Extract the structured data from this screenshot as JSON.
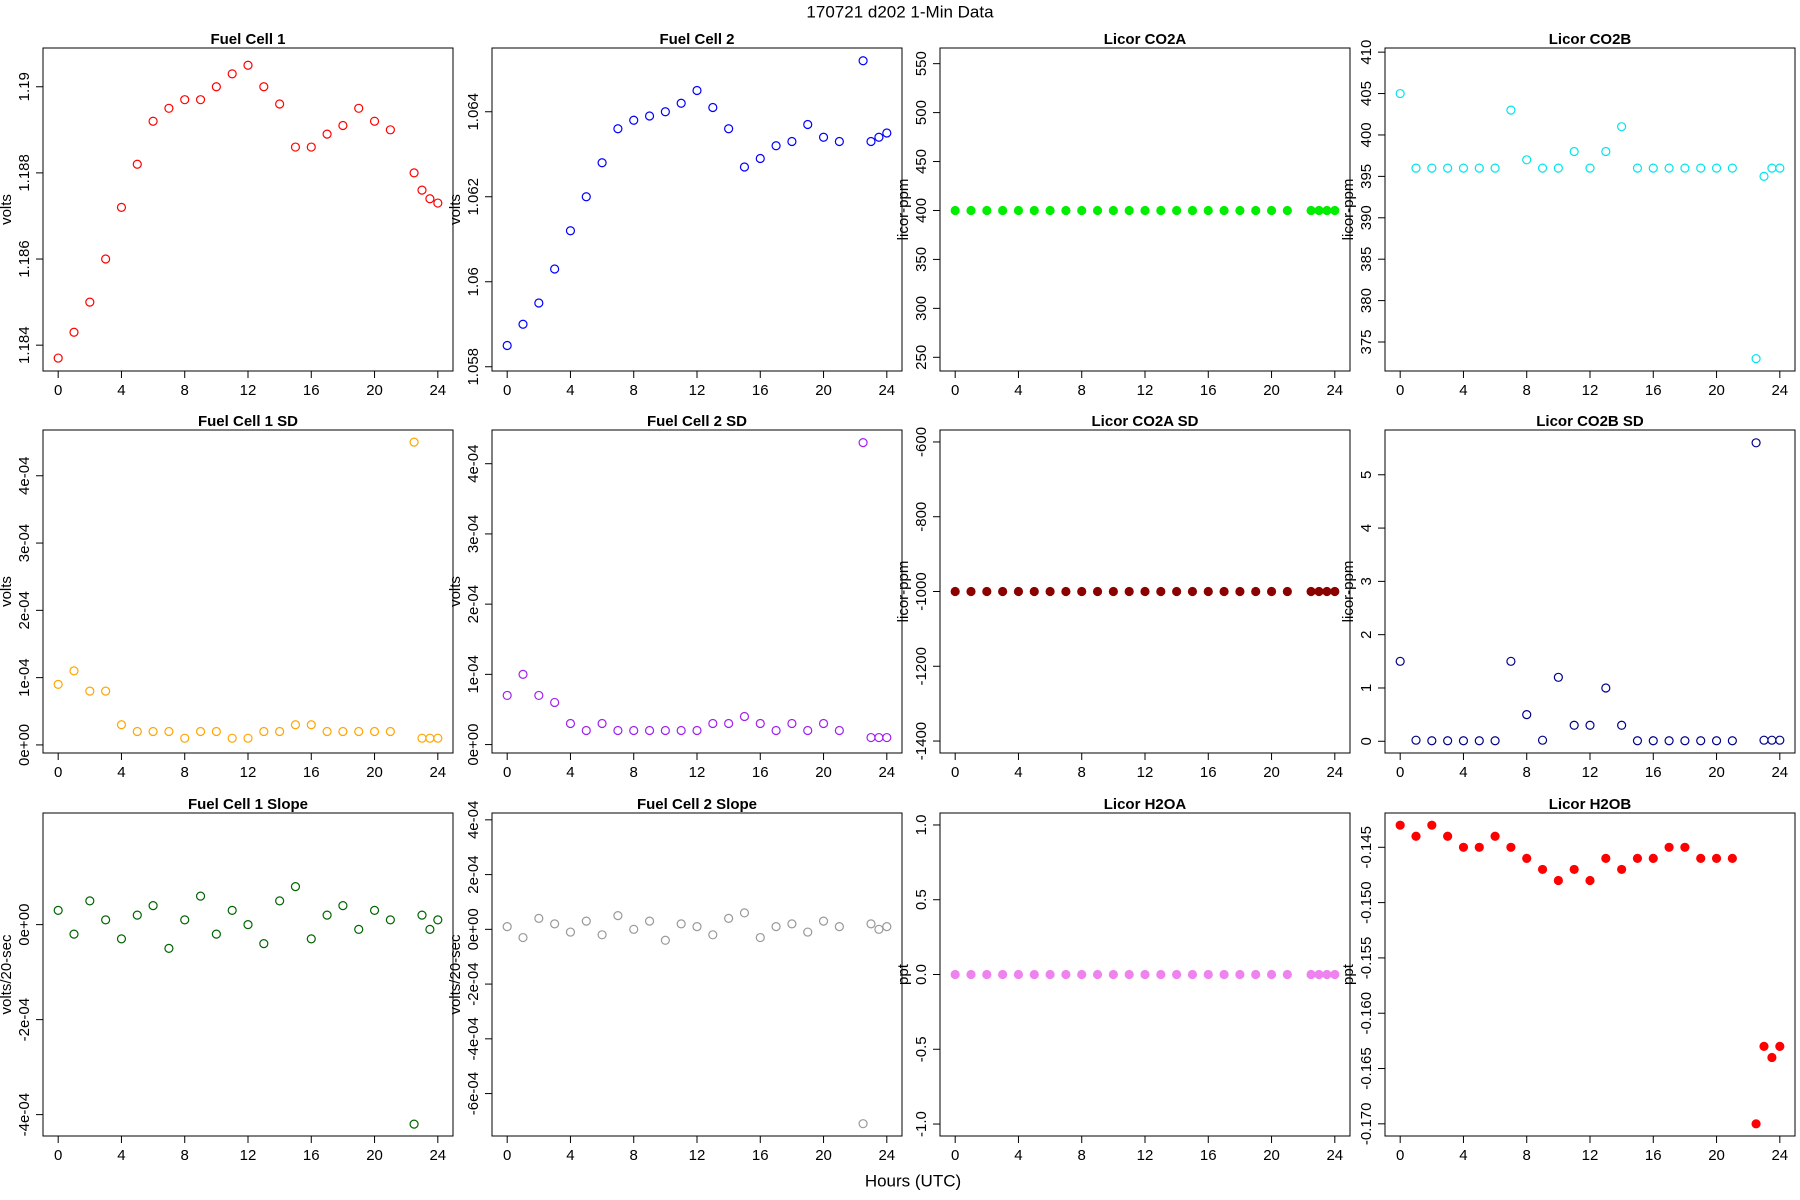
{
  "title": "170721    d202    1-Min Data",
  "xlabel": "Hours (UTC)",
  "chart_data": [
    {
      "type": "scatter",
      "title": "Fuel Cell 1",
      "ylabel": "volts",
      "color": "#ff0000",
      "filled": false,
      "x": [
        0,
        1,
        2,
        3,
        4,
        5,
        6,
        7,
        8,
        9,
        10,
        11,
        12,
        13,
        14,
        15,
        16,
        17,
        18,
        19,
        20,
        21,
        22.5,
        23,
        23.5,
        24
      ],
      "values": [
        1.1837,
        1.1843,
        1.185,
        1.186,
        1.1872,
        1.1882,
        1.1892,
        1.1895,
        1.1897,
        1.1897,
        1.19,
        1.1903,
        1.1905,
        1.19,
        1.1896,
        1.1886,
        1.1886,
        1.1889,
        1.1891,
        1.1895,
        1.1892,
        1.189,
        1.188,
        1.1876,
        1.1874,
        1.1873
      ],
      "xlim": [
        -0.96,
        24.96
      ],
      "xticks": [
        0,
        4,
        8,
        12,
        16,
        20,
        24
      ],
      "ylim": [
        1.1834,
        1.1909
      ],
      "yticks": [
        1.184,
        1.186,
        1.188,
        1.19
      ]
    },
    {
      "type": "scatter",
      "title": "Fuel Cell 2",
      "ylabel": "volts",
      "color": "#0000ff",
      "filled": false,
      "x": [
        0,
        1,
        2,
        3,
        4,
        5,
        6,
        7,
        8,
        9,
        10,
        11,
        12,
        13,
        14,
        15,
        16,
        17,
        18,
        19,
        20,
        21,
        22.5,
        23,
        23.5,
        24
      ],
      "values": [
        1.0585,
        1.059,
        1.0595,
        1.0603,
        1.0612,
        1.062,
        1.0628,
        1.0636,
        1.0638,
        1.0639,
        1.064,
        1.0642,
        1.0645,
        1.0641,
        1.0636,
        1.0627,
        1.0629,
        1.0632,
        1.0633,
        1.0637,
        1.0634,
        1.0633,
        1.0652,
        1.0633,
        1.0634,
        1.0635
      ],
      "xlim": [
        -0.96,
        24.96
      ],
      "xticks": [
        0,
        4,
        8,
        12,
        16,
        20,
        24
      ],
      "ylim": [
        1.0579,
        1.0655
      ],
      "yticks": [
        1.058,
        1.06,
        1.062,
        1.064
      ]
    },
    {
      "type": "scatter",
      "title": "Licor CO2A",
      "ylabel": "licor-ppm",
      "color": "#00ee00",
      "filled": true,
      "x": [
        0,
        1,
        2,
        3,
        4,
        5,
        6,
        7,
        8,
        9,
        10,
        11,
        12,
        13,
        14,
        15,
        16,
        17,
        18,
        19,
        20,
        21,
        22.5,
        23,
        23.5,
        24
      ],
      "values": [
        400,
        400,
        400,
        400,
        400,
        400,
        400,
        400,
        400,
        400,
        400,
        400,
        400,
        400,
        400,
        400,
        400,
        400,
        400,
        400,
        400,
        400,
        400,
        400,
        400,
        400
      ],
      "xlim": [
        -0.96,
        24.96
      ],
      "xticks": [
        0,
        4,
        8,
        12,
        16,
        20,
        24
      ],
      "ylim": [
        236,
        566
      ],
      "yticks": [
        250,
        300,
        350,
        400,
        450,
        500,
        550
      ]
    },
    {
      "type": "scatter",
      "title": "Licor CO2B",
      "ylabel": "licor-ppm",
      "color": "#00e5ee",
      "filled": false,
      "x": [
        0,
        1,
        2,
        3,
        4,
        5,
        6,
        7,
        8,
        9,
        10,
        11,
        12,
        13,
        14,
        15,
        16,
        17,
        18,
        19,
        20,
        21,
        22.5,
        23,
        23.5,
        24
      ],
      "values": [
        405,
        396,
        396,
        396,
        396,
        396,
        396,
        403,
        397,
        396,
        396,
        398,
        396,
        398,
        401,
        396,
        396,
        396,
        396,
        396,
        396,
        396,
        373,
        395,
        396,
        396
      ],
      "xlim": [
        -0.96,
        24.96
      ],
      "xticks": [
        0,
        4,
        8,
        12,
        16,
        20,
        24
      ],
      "ylim": [
        371.5,
        410.5
      ],
      "yticks": [
        375,
        380,
        385,
        390,
        395,
        400,
        405,
        410
      ]
    },
    {
      "type": "scatter",
      "title": "Fuel Cell 1 SD",
      "ylabel": "volts",
      "color": "#ffa500",
      "filled": false,
      "x": [
        0,
        1,
        2,
        3,
        4,
        5,
        6,
        7,
        8,
        9,
        10,
        11,
        12,
        13,
        14,
        15,
        16,
        17,
        18,
        19,
        20,
        21,
        22.5,
        23,
        23.5,
        24
      ],
      "values": [
        9e-05,
        0.00011,
        8e-05,
        8e-05,
        3e-05,
        2e-05,
        2e-05,
        2e-05,
        1e-05,
        2e-05,
        2e-05,
        1e-05,
        1e-05,
        2e-05,
        2e-05,
        3e-05,
        3e-05,
        2e-05,
        2e-05,
        2e-05,
        2e-05,
        2e-05,
        0.00045,
        1e-05,
        1e-05,
        1e-05
      ],
      "xlim": [
        -0.96,
        24.96
      ],
      "xticks": [
        0,
        4,
        8,
        12,
        16,
        20,
        24
      ],
      "ylim": [
        -1.2e-05,
        0.000468
      ],
      "yticks": [
        {
          "value": 0,
          "label": "0e+00"
        },
        {
          "value": 0.0001,
          "label": "1e-04"
        },
        {
          "value": 0.0002,
          "label": "2e-04"
        },
        {
          "value": 0.0003,
          "label": "3e-04"
        },
        {
          "value": 0.0004,
          "label": "4e-04"
        }
      ]
    },
    {
      "type": "scatter",
      "title": "Fuel Cell 2 SD",
      "ylabel": "volts",
      "color": "#a020f0",
      "filled": false,
      "x": [
        0,
        1,
        2,
        3,
        4,
        5,
        6,
        7,
        8,
        9,
        10,
        11,
        12,
        13,
        14,
        15,
        16,
        17,
        18,
        19,
        20,
        21,
        22.5,
        23,
        23.5,
        24
      ],
      "values": [
        7e-05,
        0.0001,
        7e-05,
        6e-05,
        3e-05,
        2e-05,
        3e-05,
        2e-05,
        2e-05,
        2e-05,
        2e-05,
        2e-05,
        2e-05,
        3e-05,
        3e-05,
        4e-05,
        3e-05,
        2e-05,
        3e-05,
        2e-05,
        3e-05,
        2e-05,
        0.00043,
        1e-05,
        1e-05,
        1e-05
      ],
      "xlim": [
        -0.96,
        24.96
      ],
      "xticks": [
        0,
        4,
        8,
        12,
        16,
        20,
        24
      ],
      "ylim": [
        -1.2e-05,
        0.000448
      ],
      "yticks": [
        {
          "value": 0,
          "label": "0e+00"
        },
        {
          "value": 0.0001,
          "label": "1e-04"
        },
        {
          "value": 0.0002,
          "label": "2e-04"
        },
        {
          "value": 0.0003,
          "label": "3e-04"
        },
        {
          "value": 0.0004,
          "label": "4e-04"
        }
      ]
    },
    {
      "type": "scatter",
      "title": "Licor CO2A SD",
      "ylabel": "licor-ppm",
      "color": "#8b0000",
      "filled": true,
      "x": [
        0,
        1,
        2,
        3,
        4,
        5,
        6,
        7,
        8,
        9,
        10,
        11,
        12,
        13,
        14,
        15,
        16,
        17,
        18,
        19,
        20,
        21,
        22.5,
        23,
        23.5,
        24
      ],
      "values": [
        -1000,
        -1000,
        -1000,
        -1000,
        -1000,
        -1000,
        -1000,
        -1000,
        -1000,
        -1000,
        -1000,
        -1000,
        -1000,
        -1000,
        -1000,
        -1000,
        -1000,
        -1000,
        -1000,
        -1000,
        -1000,
        -1000,
        -1000,
        -1000,
        -1000,
        -1000
      ],
      "xlim": [
        -0.96,
        24.96
      ],
      "xticks": [
        0,
        4,
        8,
        12,
        16,
        20,
        24
      ],
      "ylim": [
        -1432,
        -568
      ],
      "yticks": [
        -1400,
        -1200,
        -1000,
        -800,
        -600
      ]
    },
    {
      "type": "scatter",
      "title": "Licor CO2B SD",
      "ylabel": "licor-ppm",
      "color": "#00008b",
      "filled": false,
      "x": [
        0,
        1,
        2,
        3,
        4,
        5,
        6,
        7,
        8,
        9,
        10,
        11,
        12,
        13,
        14,
        15,
        16,
        17,
        18,
        19,
        20,
        21,
        22.5,
        23,
        23.5,
        24
      ],
      "values": [
        1.5,
        0.02,
        0.01,
        0.01,
        0.01,
        0.01,
        0.01,
        1.5,
        0.5,
        0.02,
        1.2,
        0.3,
        0.3,
        1.0,
        0.3,
        0.01,
        0.01,
        0.01,
        0.01,
        0.01,
        0.01,
        0.01,
        5.6,
        0.02,
        0.02,
        0.02
      ],
      "xlim": [
        -0.96,
        24.96
      ],
      "xticks": [
        0,
        4,
        8,
        12,
        16,
        20,
        24
      ],
      "ylim": [
        -0.22,
        5.84
      ],
      "yticks": [
        0,
        1,
        2,
        3,
        4,
        5
      ]
    },
    {
      "type": "scatter",
      "title": "Fuel Cell 1 Slope",
      "ylabel": "volts/20-sec",
      "color": "#006400",
      "filled": false,
      "x": [
        0,
        1,
        2,
        3,
        4,
        5,
        6,
        7,
        8,
        9,
        10,
        11,
        12,
        13,
        14,
        15,
        16,
        17,
        18,
        19,
        20,
        21,
        22.5,
        23,
        23.5,
        24
      ],
      "values": [
        3e-05,
        -2e-05,
        5e-05,
        1e-05,
        -3e-05,
        2e-05,
        4e-05,
        -5e-05,
        1e-05,
        6e-05,
        -2e-05,
        3e-05,
        0,
        -4e-05,
        5e-05,
        8e-05,
        -3e-05,
        2e-05,
        4e-05,
        -1e-05,
        3e-05,
        1e-05,
        -0.00042,
        2e-05,
        -1e-05,
        1e-05
      ],
      "xlim": [
        -0.96,
        24.96
      ],
      "xticks": [
        0,
        4,
        8,
        12,
        16,
        20,
        24
      ],
      "ylim": [
        -0.000445,
        0.000235
      ],
      "yticks": [
        {
          "value": -0.0004,
          "label": "-4e-04"
        },
        {
          "value": -0.0002,
          "label": "-2e-04"
        },
        {
          "value": 0,
          "label": "0e+00"
        }
      ]
    },
    {
      "type": "scatter",
      "title": "Fuel Cell 2 Slope",
      "ylabel": "volts/20-sec",
      "color": "#999999",
      "filled": false,
      "x": [
        0,
        1,
        2,
        3,
        4,
        5,
        6,
        7,
        8,
        9,
        10,
        11,
        12,
        13,
        14,
        15,
        16,
        17,
        18,
        19,
        20,
        21,
        22.5,
        23,
        23.5,
        24
      ],
      "values": [
        1e-05,
        -3e-05,
        4e-05,
        2e-05,
        -1e-05,
        3e-05,
        -2e-05,
        5e-05,
        0,
        3e-05,
        -4e-05,
        2e-05,
        1e-05,
        -2e-05,
        4e-05,
        6e-05,
        -3e-05,
        1e-05,
        2e-05,
        -1e-05,
        3e-05,
        1e-05,
        -0.00071,
        2e-05,
        0,
        1e-05
      ],
      "xlim": [
        -0.96,
        24.96
      ],
      "xticks": [
        0,
        4,
        8,
        12,
        16,
        20,
        24
      ],
      "ylim": [
        -0.000755,
        0.000425
      ],
      "yticks": [
        {
          "value": -0.0006,
          "label": "-6e-04"
        },
        {
          "value": -0.0004,
          "label": "-4e-04"
        },
        {
          "value": -0.0002,
          "label": "-2e-04"
        },
        {
          "value": 0,
          "label": "0e+00"
        },
        {
          "value": 0.0002,
          "label": "2e-04"
        },
        {
          "value": 0.0004,
          "label": "4e-04"
        }
      ]
    },
    {
      "type": "scatter",
      "title": "Licor H2OA",
      "ylabel": "ppt",
      "color": "#ee82ee",
      "filled": true,
      "x": [
        0,
        1,
        2,
        3,
        4,
        5,
        6,
        7,
        8,
        9,
        10,
        11,
        12,
        13,
        14,
        15,
        16,
        17,
        18,
        19,
        20,
        21,
        22.5,
        23,
        23.5,
        24
      ],
      "values": [
        0,
        0,
        0,
        0,
        0,
        0,
        0,
        0,
        0,
        0,
        0,
        0,
        0,
        0,
        0,
        0,
        0,
        0,
        0,
        0,
        0,
        0,
        0,
        0,
        0,
        0
      ],
      "xlim": [
        -0.96,
        24.96
      ],
      "xticks": [
        0,
        4,
        8,
        12,
        16,
        20,
        24
      ],
      "ylim": [
        -1.08,
        1.08
      ],
      "yticks": [
        {
          "value": -1,
          "label": "-1.0"
        },
        {
          "value": -0.5,
          "label": "-0.5"
        },
        {
          "value": 0,
          "label": "0.0"
        },
        {
          "value": 0.5,
          "label": "0.5"
        },
        {
          "value": 1,
          "label": "1.0"
        }
      ]
    },
    {
      "type": "scatter",
      "title": "Licor H2OB",
      "ylabel": "ppt",
      "color": "#ff0000",
      "filled": true,
      "x": [
        0,
        1,
        2,
        3,
        4,
        5,
        6,
        7,
        8,
        9,
        10,
        11,
        12,
        13,
        14,
        15,
        16,
        17,
        18,
        19,
        20,
        21,
        22.5,
        23,
        23.5,
        24
      ],
      "values": [
        -0.143,
        -0.144,
        -0.143,
        -0.144,
        -0.145,
        -0.145,
        -0.144,
        -0.145,
        -0.146,
        -0.147,
        -0.148,
        -0.147,
        -0.148,
        -0.146,
        -0.147,
        -0.146,
        -0.146,
        -0.145,
        -0.145,
        -0.146,
        -0.146,
        -0.146,
        -0.17,
        -0.163,
        -0.164,
        -0.163
      ],
      "xlim": [
        -0.96,
        24.96
      ],
      "xticks": [
        0,
        4,
        8,
        12,
        16,
        20,
        24
      ],
      "ylim": [
        -0.1711,
        -0.1419
      ],
      "yticks": [
        {
          "value": -0.17,
          "label": "-0.170"
        },
        -0.165,
        {
          "value": -0.16,
          "label": "-0.160"
        },
        -0.155,
        {
          "value": -0.15,
          "label": "-0.150"
        },
        -0.145
      ]
    }
  ]
}
